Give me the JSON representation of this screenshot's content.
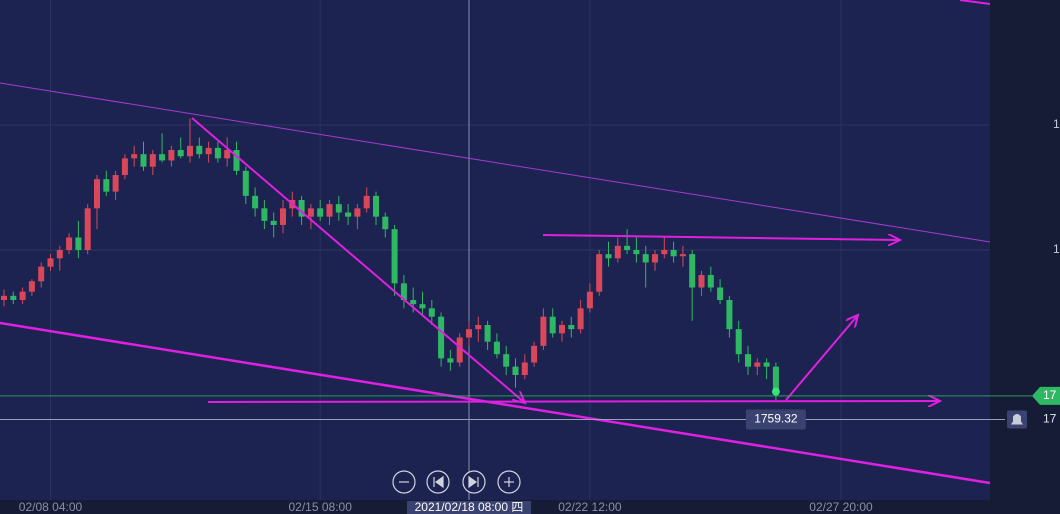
{
  "chart_data": {
    "type": "candlestick",
    "categories": [
      null,
      null,
      null,
      null,
      null,
      "02/08 04:00",
      null,
      null,
      null,
      null,
      null,
      null,
      null,
      null,
      null,
      null,
      null,
      null,
      null,
      null,
      null,
      null,
      null,
      null,
      null,
      null,
      null,
      null,
      null,
      null,
      null,
      null,
      null,
      null,
      "02/15 08:00",
      null,
      null,
      null,
      null,
      null,
      null,
      null,
      null,
      null,
      null,
      null,
      null,
      null,
      null,
      null,
      "2021/02/18 08:00 四",
      null,
      null,
      null,
      null,
      null,
      null,
      null,
      null,
      null,
      null,
      null,
      null,
      "02/22 12:00",
      null,
      null,
      null,
      null,
      null,
      null,
      null,
      null,
      null,
      null,
      null,
      null,
      null,
      null,
      null,
      null,
      null,
      null,
      null,
      null,
      null,
      null,
      null,
      null,
      null,
      null,
      "02/27 20:00",
      null,
      null,
      null,
      null,
      null,
      null,
      null,
      null,
      null,
      null,
      null,
      null,
      null,
      null,
      null,
      null
    ],
    "open": [
      1788,
      1789,
      1788,
      1790,
      1792.5,
      1796,
      1798,
      1800,
      1803,
      1800,
      1810,
      1817,
      1814,
      1818,
      1822,
      1823,
      1820,
      1823,
      1821.5,
      1824,
      1822.5,
      1825,
      1823,
      1824.5,
      1822,
      1824,
      1819,
      1813,
      1810,
      1807,
      1806,
      1810,
      1812,
      1808,
      1810,
      1808,
      1811,
      1809,
      1808,
      1810,
      1813,
      1808,
      1805,
      1792,
      1788,
      1787,
      1786,
      1784,
      1774,
      1773,
      1779,
      1781,
      1782,
      1778,
      1775,
      1772,
      1770,
      1773,
      1777,
      1784,
      1780,
      1782,
      1781,
      1786,
      1790,
      1799,
      1798,
      1801,
      1800,
      1799,
      1797,
      1799,
      1800,
      1798.5,
      1799,
      1791,
      1794,
      1791,
      1788,
      1781,
      1775,
      1772,
      1773,
      1772,
      null,
      null,
      null,
      null,
      null,
      null,
      null,
      null,
      null,
      null,
      null,
      null,
      null,
      null,
      null,
      null,
      null,
      null,
      null,
      null,
      null,
      null,
      null
    ],
    "high": [
      1790.5,
      1790,
      1791,
      1793,
      1797,
      1799,
      1801,
      1804,
      1807,
      1811,
      1818,
      1819,
      1819,
      1823,
      1825,
      1826,
      1824,
      1828,
      1825,
      1827,
      1831.5,
      1827,
      1826,
      1826,
      1827,
      1826,
      1820,
      1815,
      1812,
      1809,
      1812,
      1814,
      1813,
      1811,
      1812,
      1812,
      1813,
      1811,
      1811,
      1815,
      1814,
      1809,
      1806,
      1794,
      1791,
      1790,
      1788,
      1785,
      1776,
      1780,
      1783,
      1784,
      1783,
      1780,
      1777,
      1774,
      1775,
      1778,
      1786,
      1786,
      1783,
      1784,
      1788,
      1792,
      1800,
      1802,
      1803,
      1805,
      1803,
      1801,
      1800,
      1803,
      1802,
      1801,
      1800,
      1795,
      1796,
      1793,
      1789,
      1783,
      1777,
      1774,
      1774,
      1773,
      null,
      null,
      null,
      null,
      null,
      null,
      null,
      null,
      null,
      null,
      null,
      null,
      null,
      null,
      null,
      null,
      null,
      null,
      null,
      null,
      null,
      null,
      null
    ],
    "low": [
      1786.5,
      1787,
      1787,
      1789,
      1791,
      1795,
      1795,
      1799,
      1798,
      1799,
      1805,
      1813,
      1812,
      1817,
      1820,
      1819,
      1818,
      1821,
      1820,
      1822,
      1821,
      1822,
      1821,
      1821,
      1820,
      1818,
      1811,
      1808,
      1805,
      1803,
      1804,
      1808,
      1806,
      1805,
      1807,
      1806,
      1807,
      1806,
      1805,
      1809,
      1806,
      1803,
      1789,
      1786,
      1785,
      1784,
      1782,
      1772,
      1771,
      1772,
      1777,
      1778,
      1776,
      1774,
      1770,
      1767,
      1769,
      1772,
      1776,
      1779,
      1778,
      1779,
      1780,
      1785,
      1789,
      1796,
      1797,
      1799,
      1797,
      1791,
      1795,
      1798,
      1797,
      1796,
      1783,
      1789,
      1790,
      1787,
      1779,
      1773,
      1770,
      1770,
      1769,
      1764,
      null,
      null,
      null,
      null,
      null,
      null,
      null,
      null,
      null,
      null,
      null,
      null,
      null,
      null,
      null,
      null,
      null,
      null,
      null,
      null,
      null,
      null,
      null
    ],
    "close": [
      1789,
      1788,
      1790,
      1792.5,
      1796,
      1798,
      1800,
      1803,
      1800,
      1810,
      1817,
      1814,
      1818,
      1822,
      1823,
      1820,
      1823,
      1821.5,
      1824,
      1822.5,
      1825,
      1823,
      1824.5,
      1822,
      1824,
      1819,
      1813,
      1810,
      1807,
      1806,
      1810,
      1812,
      1808,
      1810,
      1808,
      1811,
      1809,
      1808,
      1810,
      1813,
      1808,
      1805,
      1792,
      1788,
      1787,
      1786,
      1784,
      1774,
      1773,
      1779,
      1781,
      1782,
      1778,
      1775,
      1772,
      1770,
      1773,
      1777,
      1784,
      1780,
      1782,
      1781,
      1786,
      1790,
      1799,
      1798,
      1801,
      1800,
      1799,
      1797,
      1799,
      1800,
      1798.5,
      1799,
      1791,
      1794,
      1791,
      1788,
      1781,
      1775,
      1772,
      1773,
      1772,
      1766,
      null,
      null,
      null,
      null,
      null,
      null,
      null,
      null,
      null,
      null,
      null,
      null,
      null,
      null,
      null,
      null,
      null,
      null,
      null,
      null,
      null,
      null,
      null
    ],
    "up_color": "#d9485a",
    "down_color": "#2fb864",
    "ylim": [
      1740,
      1860
    ],
    "yticks": [
      {
        "value": 1830,
        "label": "1"
      },
      {
        "value": 1800,
        "label": "1"
      }
    ],
    "grid": true,
    "current_price": {
      "value": 1765,
      "label": "17",
      "color": "#2fb864"
    },
    "crosshair": {
      "price": 1759.32,
      "axis_label": "17"
    }
  }
}
